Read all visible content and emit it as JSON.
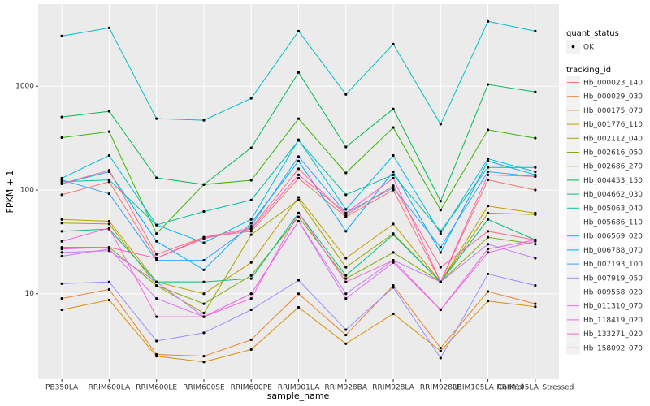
{
  "chart_data": {
    "type": "line",
    "xlabel": "sample_name",
    "ylabel": "FPKM + 1",
    "yscale": "log",
    "grid": true,
    "categories": [
      "PB350LA",
      "RRIM600LA",
      "RRIM600LE",
      "RRIM600SE",
      "RRIM600PE",
      "RRIM901LA",
      "RRIM928BA",
      "RRIM928LA",
      "RRIM928LE",
      "RRIM105LA_Control",
      "RRIM105LA_Stressed"
    ],
    "ylim": [
      1.5,
      6200
    ],
    "yticks": [
      10,
      100,
      1000
    ],
    "point_legend": {
      "title": "quant_status",
      "label": "OK"
    },
    "legend_title": "tracking_id",
    "series": [
      {
        "name": "Hb_000023_140",
        "color": "#F8766D",
        "values": [
          90,
          120,
          22,
          35,
          40,
          130,
          55,
          100,
          13,
          125,
          100
        ]
      },
      {
        "name": "Hb_000029_030",
        "color": "#EA8331",
        "values": [
          9,
          11,
          2.6,
          2.5,
          3.6,
          10,
          4,
          12,
          3,
          10.5,
          8
        ]
      },
      {
        "name": "Hb_000175_070",
        "color": "#D89000",
        "values": [
          7,
          8.7,
          2.5,
          2.2,
          2.9,
          7.4,
          3.3,
          6.4,
          2.8,
          8.5,
          7.5
        ]
      },
      {
        "name": "Hb_001776_110",
        "color": "#C09B00",
        "values": [
          52,
          50,
          13,
          10,
          20,
          85,
          22,
          47,
          13,
          70,
          60
        ]
      },
      {
        "name": "Hb_002112_040",
        "color": "#A3A500",
        "values": [
          48,
          47,
          12,
          6.5,
          37,
          80,
          18,
          38,
          13,
          60,
          58
        ]
      },
      {
        "name": "Hb_002616_050",
        "color": "#7CAE00",
        "values": [
          28,
          28,
          12,
          8,
          15,
          55,
          14,
          25,
          13,
          35,
          30
        ]
      },
      {
        "name": "Hb_002686_270",
        "color": "#39B600",
        "values": [
          320,
          365,
          38,
          113,
          124,
          487,
          146,
          400,
          64,
          380,
          316
        ]
      },
      {
        "name": "Hb_004453_150",
        "color": "#00BB4E",
        "values": [
          505,
          573,
          131,
          113,
          255,
          1358,
          260,
          604,
          78,
          1040,
          881
        ]
      },
      {
        "name": "Hb_004662_030",
        "color": "#00BF7D",
        "values": [
          40,
          42,
          13,
          13,
          14,
          60,
          15,
          37,
          13,
          52,
          33
        ]
      },
      {
        "name": "Hb_005063_040",
        "color": "#00C1A3",
        "values": [
          120,
          125,
          46,
          62,
          80,
          300,
          90,
          140,
          40,
          165,
          165
        ]
      },
      {
        "name": "Hb_005686_110",
        "color": "#00BFC4",
        "values": [
          3050,
          3650,
          487,
          470,
          764,
          3400,
          835,
          2550,
          430,
          4220,
          3400
        ]
      },
      {
        "name": "Hb_006569_020",
        "color": "#00BAE0",
        "values": [
          130,
          215,
          46,
          31,
          52,
          305,
          65,
          215,
          38,
          200,
          150
        ]
      },
      {
        "name": "Hb_006788_070",
        "color": "#00B0F6",
        "values": [
          115,
          150,
          32,
          17,
          48,
          190,
          40,
          150,
          25,
          190,
          140
        ]
      },
      {
        "name": "Hb_007193_100",
        "color": "#35A2FF",
        "values": [
          125,
          92,
          21,
          21,
          45,
          210,
          60,
          105,
          28,
          150,
          135
        ]
      },
      {
        "name": "Hb_007919_050",
        "color": "#9590FF",
        "values": [
          12.5,
          13,
          3.5,
          4.2,
          7,
          13.5,
          4.5,
          11.5,
          2.4,
          15.5,
          12
        ]
      },
      {
        "name": "Hb_009558_020",
        "color": "#C77CFF",
        "values": [
          25,
          26,
          13,
          6,
          10,
          50,
          10,
          21,
          13,
          30,
          22
        ]
      },
      {
        "name": "Hb_011310_070",
        "color": "#E76BF3",
        "values": [
          23,
          27,
          9,
          6,
          10,
          50,
          9,
          20,
          7,
          25,
          32
        ]
      },
      {
        "name": "Hb_118419_020",
        "color": "#FA62DB",
        "values": [
          32,
          43,
          6,
          6,
          9,
          60,
          13,
          21,
          7,
          27,
          33
        ]
      },
      {
        "name": "Hb_133271_020",
        "color": "#FF62BC",
        "values": [
          27,
          28,
          22,
          34,
          42,
          140,
          60,
          130,
          13,
          140,
          135
        ]
      },
      {
        "name": "Hb_158092_070",
        "color": "#FF6C90",
        "values": [
          115,
          155,
          24,
          35,
          43,
          160,
          57,
          110,
          18,
          40,
          33
        ]
      }
    ]
  }
}
